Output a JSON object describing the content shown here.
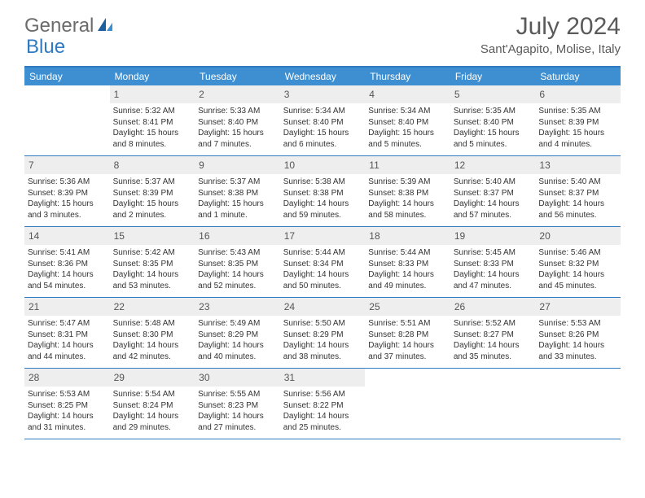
{
  "brand": {
    "name_a": "General",
    "name_b": "Blue"
  },
  "title": "July 2024",
  "location": "Sant'Agapito, Molise, Italy",
  "colors": {
    "header_bg": "#3d8fd1",
    "accent": "#2f7ac0",
    "daynum_bg": "#eeeeee",
    "text": "#333333",
    "muted": "#5a5a5a",
    "white": "#ffffff"
  },
  "day_names": [
    "Sunday",
    "Monday",
    "Tuesday",
    "Wednesday",
    "Thursday",
    "Friday",
    "Saturday"
  ],
  "weeks": [
    [
      null,
      {
        "n": "1",
        "sr": "5:32 AM",
        "ss": "8:41 PM",
        "dl": "Daylight: 15 hours and 8 minutes."
      },
      {
        "n": "2",
        "sr": "5:33 AM",
        "ss": "8:40 PM",
        "dl": "Daylight: 15 hours and 7 minutes."
      },
      {
        "n": "3",
        "sr": "5:34 AM",
        "ss": "8:40 PM",
        "dl": "Daylight: 15 hours and 6 minutes."
      },
      {
        "n": "4",
        "sr": "5:34 AM",
        "ss": "8:40 PM",
        "dl": "Daylight: 15 hours and 5 minutes."
      },
      {
        "n": "5",
        "sr": "5:35 AM",
        "ss": "8:40 PM",
        "dl": "Daylight: 15 hours and 5 minutes."
      },
      {
        "n": "6",
        "sr": "5:35 AM",
        "ss": "8:39 PM",
        "dl": "Daylight: 15 hours and 4 minutes."
      }
    ],
    [
      {
        "n": "7",
        "sr": "5:36 AM",
        "ss": "8:39 PM",
        "dl": "Daylight: 15 hours and 3 minutes."
      },
      {
        "n": "8",
        "sr": "5:37 AM",
        "ss": "8:39 PM",
        "dl": "Daylight: 15 hours and 2 minutes."
      },
      {
        "n": "9",
        "sr": "5:37 AM",
        "ss": "8:38 PM",
        "dl": "Daylight: 15 hours and 1 minute."
      },
      {
        "n": "10",
        "sr": "5:38 AM",
        "ss": "8:38 PM",
        "dl": "Daylight: 14 hours and 59 minutes."
      },
      {
        "n": "11",
        "sr": "5:39 AM",
        "ss": "8:38 PM",
        "dl": "Daylight: 14 hours and 58 minutes."
      },
      {
        "n": "12",
        "sr": "5:40 AM",
        "ss": "8:37 PM",
        "dl": "Daylight: 14 hours and 57 minutes."
      },
      {
        "n": "13",
        "sr": "5:40 AM",
        "ss": "8:37 PM",
        "dl": "Daylight: 14 hours and 56 minutes."
      }
    ],
    [
      {
        "n": "14",
        "sr": "5:41 AM",
        "ss": "8:36 PM",
        "dl": "Daylight: 14 hours and 54 minutes."
      },
      {
        "n": "15",
        "sr": "5:42 AM",
        "ss": "8:35 PM",
        "dl": "Daylight: 14 hours and 53 minutes."
      },
      {
        "n": "16",
        "sr": "5:43 AM",
        "ss": "8:35 PM",
        "dl": "Daylight: 14 hours and 52 minutes."
      },
      {
        "n": "17",
        "sr": "5:44 AM",
        "ss": "8:34 PM",
        "dl": "Daylight: 14 hours and 50 minutes."
      },
      {
        "n": "18",
        "sr": "5:44 AM",
        "ss": "8:33 PM",
        "dl": "Daylight: 14 hours and 49 minutes."
      },
      {
        "n": "19",
        "sr": "5:45 AM",
        "ss": "8:33 PM",
        "dl": "Daylight: 14 hours and 47 minutes."
      },
      {
        "n": "20",
        "sr": "5:46 AM",
        "ss": "8:32 PM",
        "dl": "Daylight: 14 hours and 45 minutes."
      }
    ],
    [
      {
        "n": "21",
        "sr": "5:47 AM",
        "ss": "8:31 PM",
        "dl": "Daylight: 14 hours and 44 minutes."
      },
      {
        "n": "22",
        "sr": "5:48 AM",
        "ss": "8:30 PM",
        "dl": "Daylight: 14 hours and 42 minutes."
      },
      {
        "n": "23",
        "sr": "5:49 AM",
        "ss": "8:29 PM",
        "dl": "Daylight: 14 hours and 40 minutes."
      },
      {
        "n": "24",
        "sr": "5:50 AM",
        "ss": "8:29 PM",
        "dl": "Daylight: 14 hours and 38 minutes."
      },
      {
        "n": "25",
        "sr": "5:51 AM",
        "ss": "8:28 PM",
        "dl": "Daylight: 14 hours and 37 minutes."
      },
      {
        "n": "26",
        "sr": "5:52 AM",
        "ss": "8:27 PM",
        "dl": "Daylight: 14 hours and 35 minutes."
      },
      {
        "n": "27",
        "sr": "5:53 AM",
        "ss": "8:26 PM",
        "dl": "Daylight: 14 hours and 33 minutes."
      }
    ],
    [
      {
        "n": "28",
        "sr": "5:53 AM",
        "ss": "8:25 PM",
        "dl": "Daylight: 14 hours and 31 minutes."
      },
      {
        "n": "29",
        "sr": "5:54 AM",
        "ss": "8:24 PM",
        "dl": "Daylight: 14 hours and 29 minutes."
      },
      {
        "n": "30",
        "sr": "5:55 AM",
        "ss": "8:23 PM",
        "dl": "Daylight: 14 hours and 27 minutes."
      },
      {
        "n": "31",
        "sr": "5:56 AM",
        "ss": "8:22 PM",
        "dl": "Daylight: 14 hours and 25 minutes."
      },
      null,
      null,
      null
    ]
  ],
  "labels": {
    "sunrise": "Sunrise:",
    "sunset": "Sunset:"
  }
}
